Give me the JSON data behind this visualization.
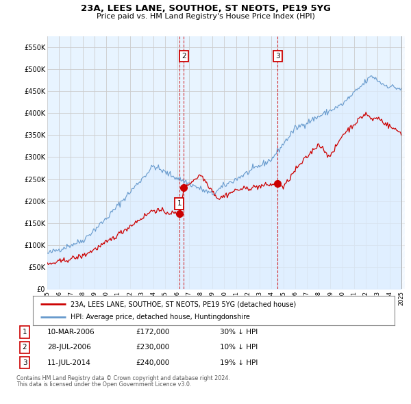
{
  "title": "23A, LEES LANE, SOUTHOE, ST NEOTS, PE19 5YG",
  "subtitle": "Price paid vs. HM Land Registry's House Price Index (HPI)",
  "ylabel_ticks": [
    "£0",
    "£50K",
    "£100K",
    "£150K",
    "£200K",
    "£250K",
    "£300K",
    "£350K",
    "£400K",
    "£450K",
    "£500K",
    "£550K"
  ],
  "ylabel_values": [
    0,
    50000,
    100000,
    150000,
    200000,
    250000,
    300000,
    350000,
    400000,
    450000,
    500000,
    550000
  ],
  "xlim_start": 1995.0,
  "xlim_end": 2025.3,
  "ylim_min": 0,
  "ylim_max": 575000,
  "red_line_color": "#cc0000",
  "blue_line_color": "#6699cc",
  "blue_fill_color": "#ddeeff",
  "sale_marker_color": "#cc0000",
  "grid_color": "#cccccc",
  "background_color": "#ffffff",
  "legend_label_red": "23A, LEES LANE, SOUTHOE, ST NEOTS, PE19 5YG (detached house)",
  "legend_label_blue": "HPI: Average price, detached house, Huntingdonshire",
  "sales": [
    {
      "num": 1,
      "date": "10-MAR-2006",
      "price": 172000,
      "hpi_diff": "30% ↓ HPI",
      "year": 2006.19
    },
    {
      "num": 2,
      "date": "28-JUL-2006",
      "price": 230000,
      "hpi_diff": "10% ↓ HPI",
      "year": 2006.57
    },
    {
      "num": 3,
      "date": "11-JUL-2014",
      "price": 240000,
      "hpi_diff": "19% ↓ HPI",
      "year": 2014.52
    }
  ],
  "footnote1": "Contains HM Land Registry data © Crown copyright and database right 2024.",
  "footnote2": "This data is licensed under the Open Government Licence v3.0."
}
